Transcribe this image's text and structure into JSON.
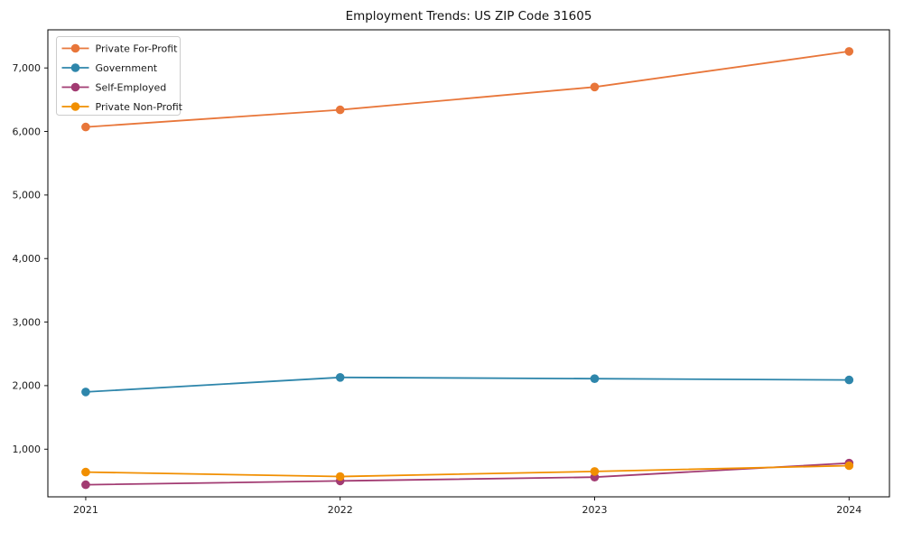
{
  "chart_data": {
    "type": "line",
    "title": "Employment Trends: US ZIP Code 31605",
    "x": [
      2021,
      2022,
      2023,
      2024
    ],
    "xtick_labels": [
      "2021",
      "2022",
      "2023",
      "2024"
    ],
    "series": [
      {
        "name": "Private For-Profit",
        "color": "#e8763a",
        "values": [
          6070,
          6340,
          6700,
          7260
        ]
      },
      {
        "name": "Government",
        "color": "#2e86ab",
        "values": [
          1900,
          2130,
          2110,
          2090
        ]
      },
      {
        "name": "Self-Employed",
        "color": "#a23b72",
        "values": [
          440,
          500,
          560,
          780
        ]
      },
      {
        "name": "Private Non-Profit",
        "color": "#f18f01",
        "values": [
          640,
          570,
          650,
          740
        ]
      }
    ],
    "xlabel": "",
    "ylabel": "",
    "ylim": [
      250,
      7600
    ],
    "yticks": [
      1000,
      2000,
      3000,
      4000,
      5000,
      6000,
      7000
    ],
    "ytick_labels": [
      "1,000",
      "2,000",
      "3,000",
      "4,000",
      "5,000",
      "6,000",
      "7,000"
    ],
    "legend": {
      "position": "upper-left",
      "items": [
        "Private For-Profit",
        "Government",
        "Self-Employed",
        "Private Non-Profit"
      ]
    },
    "grid": false,
    "background_color": "#ffffff",
    "axis_color": "#000000",
    "legend_border_color": "#cccccc"
  }
}
